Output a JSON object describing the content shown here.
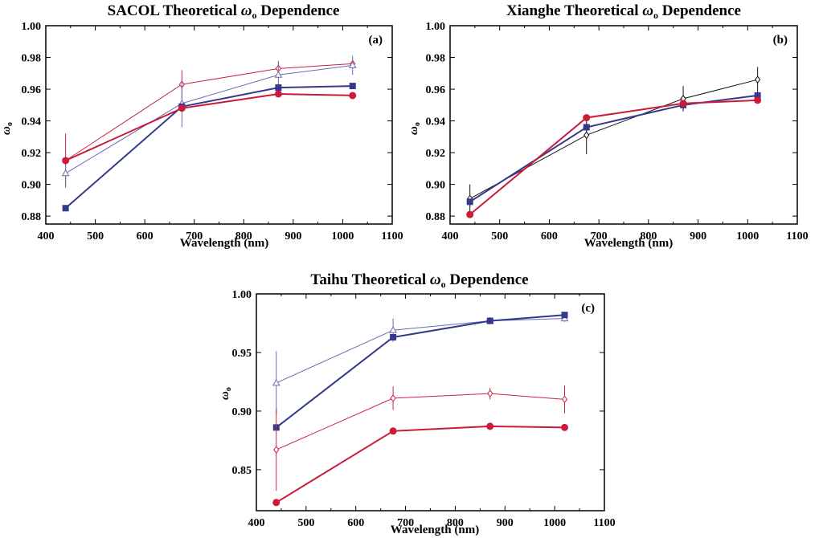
{
  "chart_data": [
    {
      "type": "line",
      "title": "SACOL Theoretical ωo Dependence",
      "title_main": "SACOL Theoretical ",
      "title_sym": "ω",
      "title_sub": "o",
      "title_rest": " Dependence",
      "panel_label": "(a)",
      "xlabel": "Wavelength (nm)",
      "ylabel_sym": "ω",
      "ylabel_sub": "o",
      "xlim": [
        400,
        1100
      ],
      "ylim": [
        0.875,
        1.0
      ],
      "xticks": [
        400,
        500,
        600,
        700,
        800,
        900,
        1000,
        1100
      ],
      "xtick_labels": [
        "400",
        "500",
        "600",
        "700",
        "800",
        "900",
        "1000",
        "1100"
      ],
      "yticks": [
        0.88,
        0.9,
        0.92,
        0.94,
        0.96,
        0.98,
        1.0
      ],
      "ytick_labels": [
        "0.88",
        "0.90",
        "0.92",
        "0.94",
        "0.96",
        "0.98",
        "1.00"
      ],
      "series": [
        {
          "name": "red-thin-diamond",
          "color": "#cc2244",
          "width": 1,
          "marker": "diamond",
          "x": [
            440,
            675,
            870,
            1020
          ],
          "y": [
            0.915,
            0.963,
            0.973,
            0.976
          ],
          "err": [
            0.017,
            0.009,
            0.004,
            0.003
          ]
        },
        {
          "name": "blue-thin-triangle",
          "color": "#6a6aaf",
          "width": 1,
          "marker": "triangle",
          "x": [
            440,
            675,
            870,
            1020
          ],
          "y": [
            0.907,
            0.951,
            0.969,
            0.975
          ],
          "err": [
            0.008,
            0.015,
            0.009,
            0.006
          ]
        },
        {
          "name": "blue-square",
          "color": "#333a8a",
          "width": 2,
          "marker": "square",
          "x": [
            440,
            675,
            870,
            1020
          ],
          "y": [
            0.885,
            0.949,
            0.961,
            0.962
          ],
          "err": [
            0,
            0,
            0,
            0
          ]
        },
        {
          "name": "red-circle",
          "color": "#cc1a3a",
          "width": 2,
          "marker": "circle",
          "x": [
            440,
            675,
            870,
            1020
          ],
          "y": [
            0.915,
            0.948,
            0.957,
            0.956
          ],
          "err": [
            0,
            0,
            0,
            0
          ]
        }
      ]
    },
    {
      "type": "line",
      "title": "Xianghe Theoretical ωo Dependence",
      "title_main": "Xianghe Theoretical ",
      "title_sym": "ω",
      "title_sub": "o",
      "title_rest": " Dependence",
      "panel_label": "(b)",
      "xlabel": "Wavelength (nm)",
      "ylabel_sym": "ω",
      "ylabel_sub": "o",
      "xlim": [
        400,
        1100
      ],
      "ylim": [
        0.875,
        1.0
      ],
      "xticks": [
        400,
        500,
        600,
        700,
        800,
        900,
        1000,
        1100
      ],
      "xtick_labels": [
        "400",
        "500",
        "600",
        "700",
        "800",
        "900",
        "1000",
        "1100"
      ],
      "yticks": [
        0.88,
        0.9,
        0.92,
        0.94,
        0.96,
        0.98,
        1.0
      ],
      "ytick_labels": [
        "0.88",
        "0.90",
        "0.92",
        "0.94",
        "0.96",
        "0.98",
        "1.00"
      ],
      "series": [
        {
          "name": "black-diamond",
          "color": "#111111",
          "width": 1,
          "marker": "diamond",
          "x": [
            440,
            675,
            870,
            1020
          ],
          "y": [
            0.891,
            0.931,
            0.954,
            0.966
          ],
          "err": [
            0.009,
            0.012,
            0.008,
            0.008
          ]
        },
        {
          "name": "blue-square",
          "color": "#333a8a",
          "width": 2,
          "marker": "square",
          "x": [
            440,
            675,
            870,
            1020
          ],
          "y": [
            0.889,
            0.936,
            0.95,
            0.956
          ],
          "err": [
            0,
            0,
            0,
            0
          ]
        },
        {
          "name": "red-circle",
          "color": "#cc1a3a",
          "width": 2,
          "marker": "circle",
          "x": [
            440,
            675,
            870,
            1020
          ],
          "y": [
            0.881,
            0.942,
            0.951,
            0.953
          ],
          "err": [
            0,
            0,
            0,
            0
          ]
        }
      ]
    },
    {
      "type": "line",
      "title": "Taihu Theoretical ωo Dependence",
      "title_main": "Taihu Theoretical ",
      "title_sym": "ω",
      "title_sub": "o",
      "title_rest": " Dependence",
      "panel_label": "(c)",
      "xlabel": "Wavelength (nm)",
      "ylabel_sym": "ω",
      "ylabel_sub": "o",
      "xlim": [
        400,
        1100
      ],
      "ylim": [
        0.815,
        1.0
      ],
      "xticks": [
        400,
        500,
        600,
        700,
        800,
        900,
        1000,
        1100
      ],
      "xtick_labels": [
        "400",
        "500",
        "600",
        "700",
        "800",
        "900",
        "1000",
        "1100"
      ],
      "yticks": [
        0.85,
        0.9,
        0.95,
        1.0
      ],
      "ytick_labels": [
        "0.85",
        "0.90",
        "0.95",
        "1.00"
      ],
      "series": [
        {
          "name": "blue-thin-triangle",
          "color": "#6a6aaf",
          "width": 1,
          "marker": "triangle",
          "x": [
            440,
            675,
            870,
            1020
          ],
          "y": [
            0.924,
            0.969,
            0.977,
            0.979
          ],
          "err": [
            0.027,
            0.01,
            0.003,
            0.003
          ]
        },
        {
          "name": "blue-square",
          "color": "#333a8a",
          "width": 2,
          "marker": "square",
          "x": [
            440,
            675,
            870,
            1020
          ],
          "y": [
            0.886,
            0.963,
            0.977,
            0.982
          ],
          "err": [
            0,
            0,
            0,
            0
          ]
        },
        {
          "name": "red-thin-diamond",
          "color": "#cc2244",
          "width": 1,
          "marker": "diamond",
          "x": [
            440,
            675,
            870,
            1020
          ],
          "y": [
            0.867,
            0.911,
            0.915,
            0.91
          ],
          "err": [
            0.035,
            0.01,
            0.005,
            0.012
          ]
        },
        {
          "name": "red-circle",
          "color": "#cc1a3a",
          "width": 2,
          "marker": "circle",
          "x": [
            440,
            675,
            870,
            1020
          ],
          "y": [
            0.822,
            0.883,
            0.887,
            0.886
          ],
          "err": [
            0,
            0,
            0,
            0
          ]
        }
      ]
    }
  ]
}
